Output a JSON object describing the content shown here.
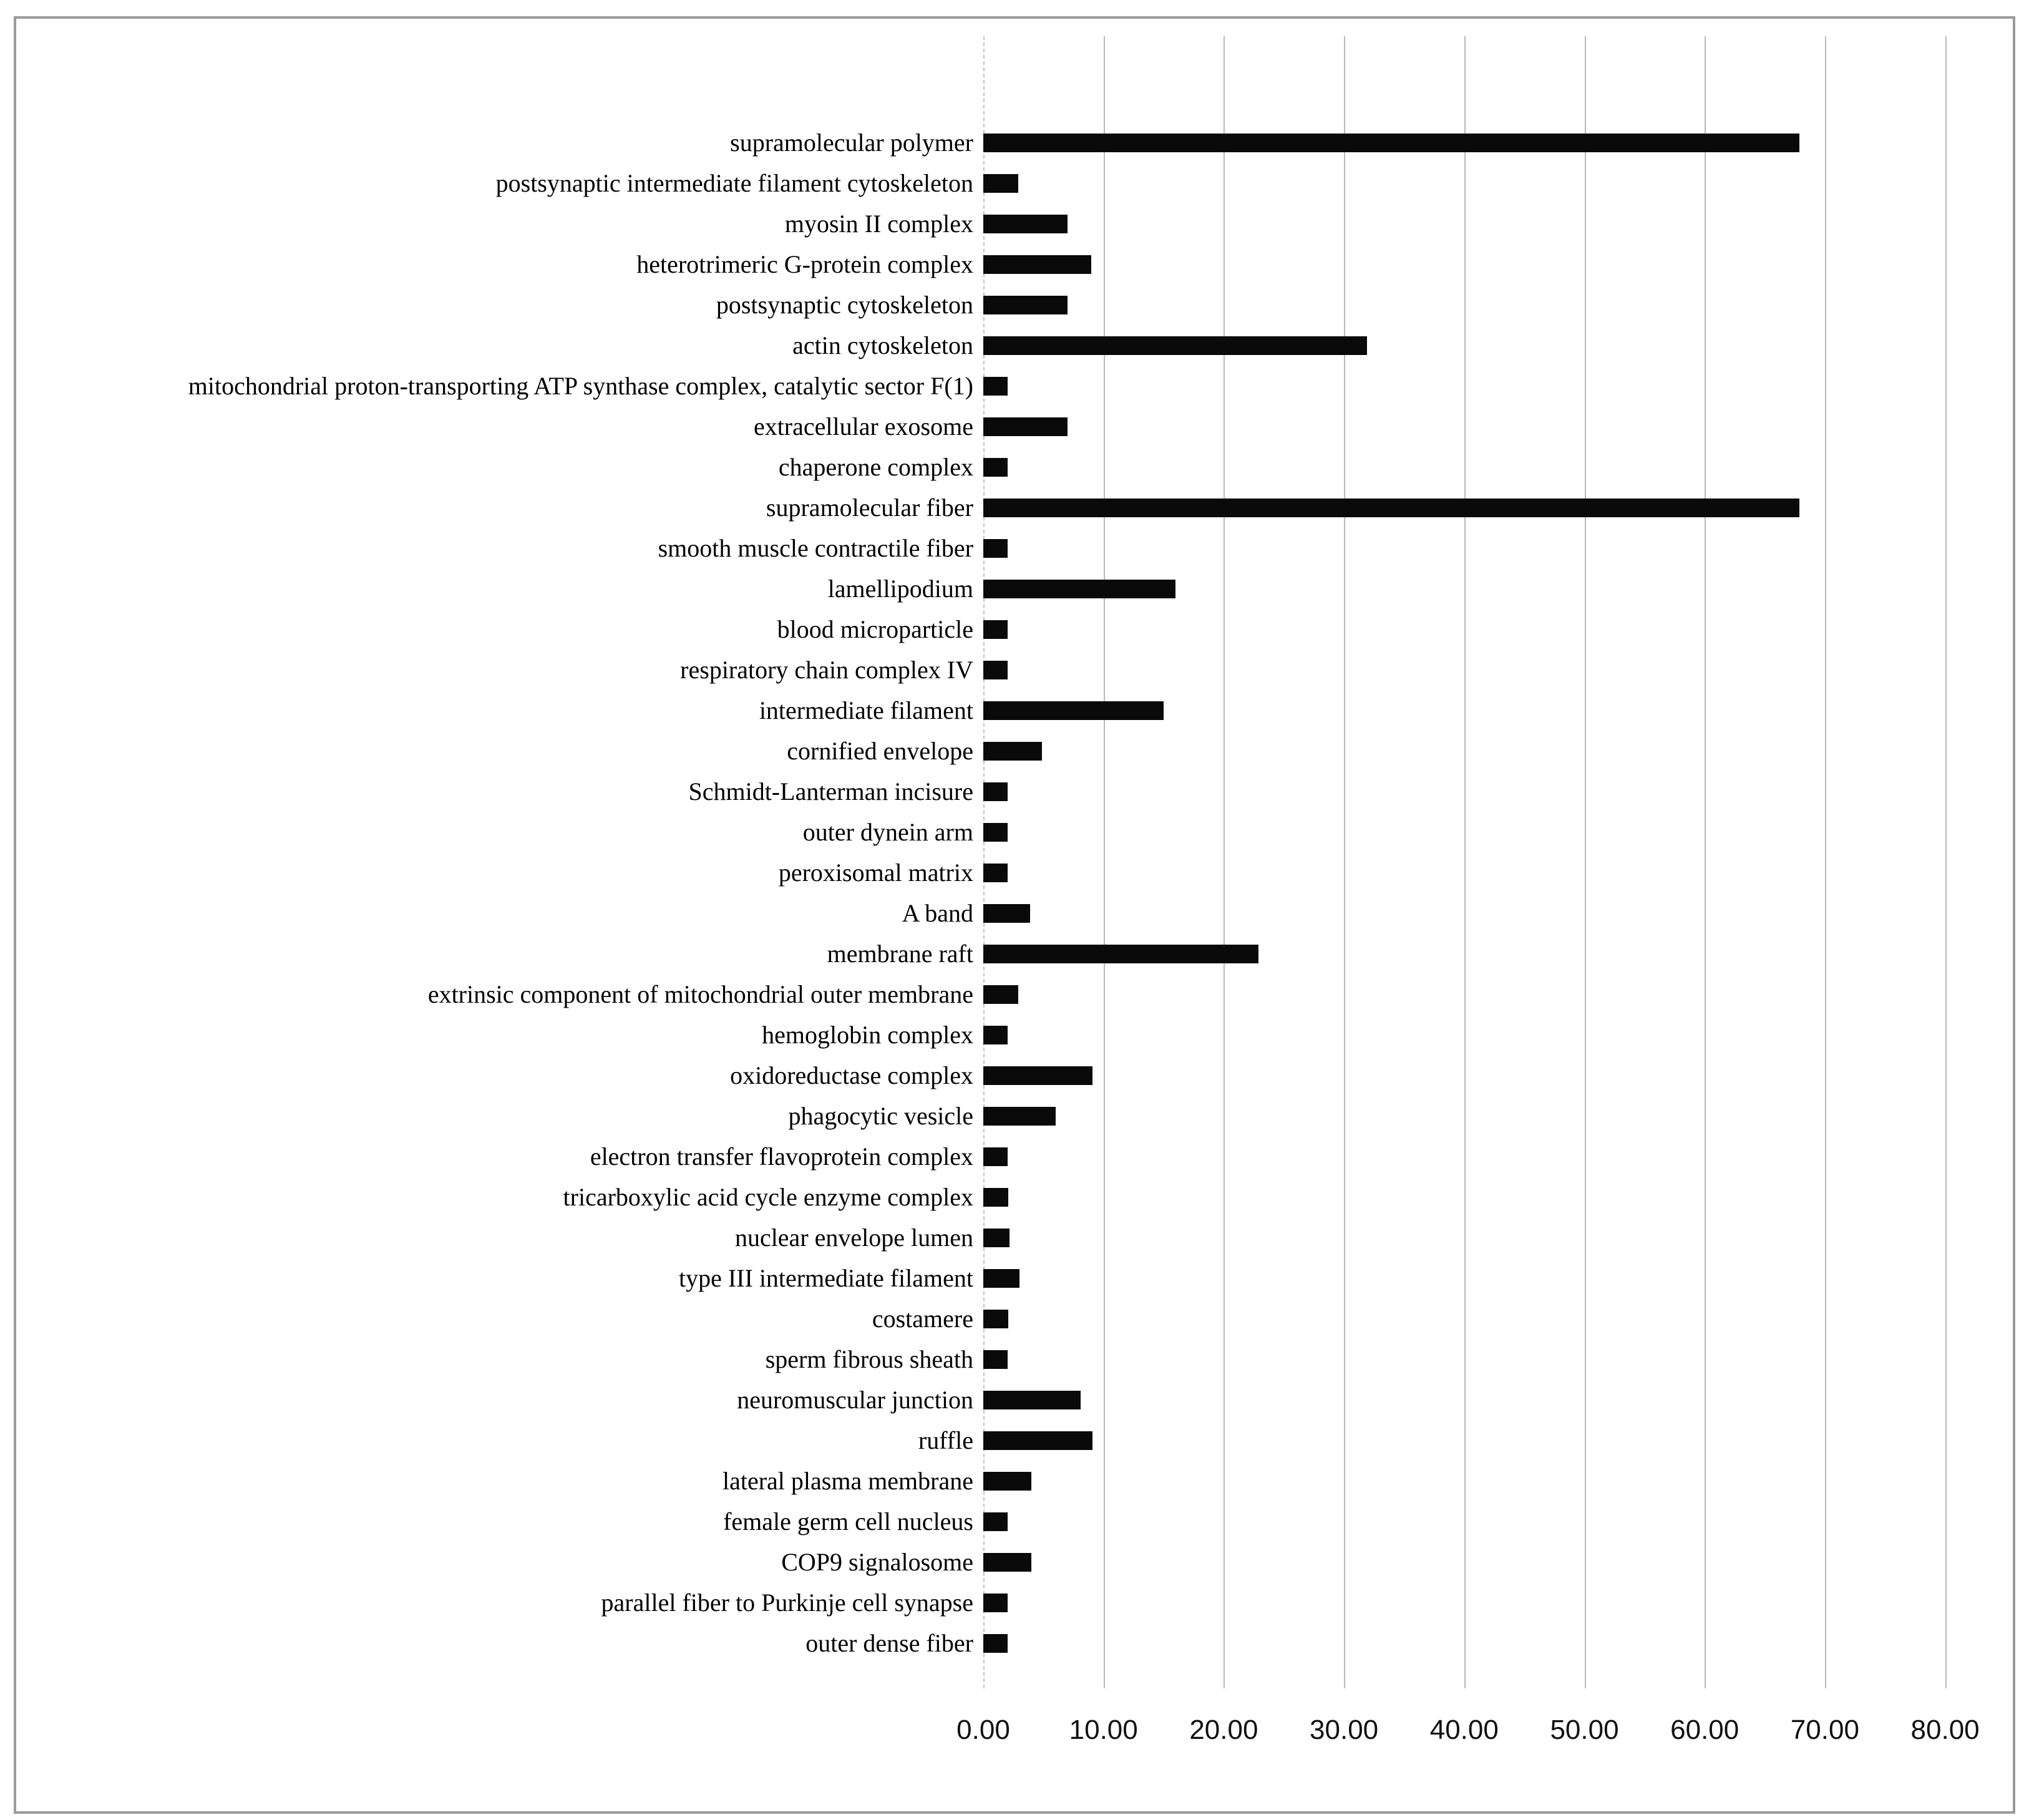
{
  "figure": {
    "background_color": "#ffffff",
    "frame_color": "#9b9b9b"
  },
  "chart_data": {
    "type": "bar",
    "orientation": "horizontal",
    "title": "",
    "xlabel": "",
    "ylabel": "",
    "grid": true,
    "legend": null,
    "bar_color": "#0a0a0a",
    "gridline_color": "#b9b9b9",
    "xlim": [
      0,
      80
    ],
    "x_tick_step": 10,
    "x_ticks": [
      "0.00",
      "10.00",
      "20.00",
      "30.00",
      "40.00",
      "50.00",
      "60.00",
      "70.00",
      "80.00"
    ],
    "x_tick_values": [
      0,
      10,
      20,
      30,
      40,
      50,
      60,
      70,
      80
    ],
    "categories": [
      "supramolecular polymer",
      "postsynaptic intermediate filament cytoskeleton",
      "myosin II complex",
      "heterotrimeric G-protein complex",
      "postsynaptic cytoskeleton",
      "actin cytoskeleton",
      "mitochondrial proton-transporting ATP synthase complex, catalytic sector F(1)",
      "extracellular exosome",
      "chaperone complex",
      "supramolecular fiber",
      "smooth muscle contractile fiber",
      "lamellipodium",
      "blood microparticle",
      "respiratory chain complex IV",
      "intermediate filament",
      "cornified envelope",
      "Schmidt-Lanterman incisure",
      "outer dynein arm",
      "peroxisomal matrix",
      "A band",
      "membrane raft",
      "extrinsic component of mitochondrial outer membrane",
      "hemoglobin complex",
      "oxidoreductase complex",
      "phagocytic vesicle",
      "electron transfer flavoprotein complex",
      "tricarboxylic acid cycle enzyme complex",
      "nuclear envelope lumen",
      "type III intermediate filament",
      "costamere",
      "sperm fibrous sheath",
      "neuromuscular junction",
      "ruffle",
      "lateral plasma membrane",
      "female germ cell nucleus",
      "COP9 signalosome",
      "parallel fiber to Purkinje cell synapse",
      "outer dense fiber"
    ],
    "values": [
      67.9,
      2.9,
      7.0,
      9.0,
      7.0,
      31.9,
      2.0,
      7.0,
      2.0,
      67.9,
      2.0,
      16.0,
      2.0,
      2.0,
      15.0,
      4.9,
      2.0,
      2.0,
      2.0,
      3.9,
      22.9,
      2.9,
      2.0,
      9.1,
      6.0,
      2.0,
      2.1,
      2.2,
      3.0,
      2.1,
      2.0,
      8.1,
      9.1,
      4.0,
      2.0,
      4.0,
      2.0,
      2.0
    ]
  }
}
